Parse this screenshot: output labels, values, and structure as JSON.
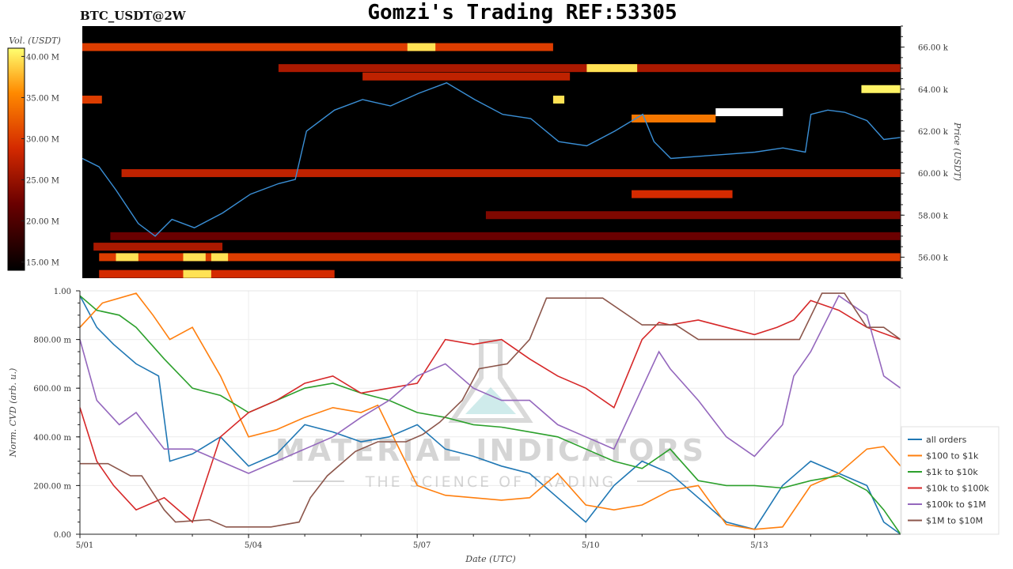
{
  "header": {
    "symbol": "BTC_USDT@2W",
    "title": "Gomzi's Trading REF:53305"
  },
  "watermark": {
    "line1": "MATERIAL INDICATORS",
    "line2": "THE SCIENCE OF TRADING"
  },
  "colors": {
    "price_line": "#3a8fd6",
    "heat_background": "#000000",
    "all_orders": "#1f77b4",
    "100_to_1k": "#ff7f0e",
    "1k_to_10k": "#2ca02c",
    "10k_to_100k": "#d62728",
    "100k_to_1m": "#9467bd",
    "1m_to_10m": "#8c564b"
  },
  "chart_data": [
    {
      "type": "heatmap",
      "title": "Gomzi's Trading REF:53305",
      "ylabel": "Price (USDT)",
      "colorbar_label": "Vol. (USDT)",
      "ylim": [
        55000,
        67000
      ],
      "colorbar_range": [
        14000000,
        41000000
      ],
      "y_ticks": [
        56000,
        58000,
        60000,
        62000,
        64000,
        66000
      ],
      "y_tick_labels": [
        "56.00 k",
        "58.00 k",
        "60.00 k",
        "62.00 k",
        "64.00 k",
        "66.00 k"
      ],
      "colorbar_ticks": [
        15000000,
        20000000,
        25000000,
        30000000,
        35000000,
        40000000
      ],
      "colorbar_tick_labels": [
        "15.00 M",
        "20.00 M",
        "25.00 M",
        "30.00 M",
        "35.00 M",
        "40.00 M"
      ],
      "price_series": {
        "x": [
          0,
          0.3,
          0.6,
          1.0,
          1.3,
          1.6,
          2.0,
          2.5,
          3.0,
          3.5,
          3.8,
          4.0,
          4.5,
          5.0,
          5.5,
          6.0,
          6.5,
          7.0,
          7.5,
          8.0,
          8.5,
          9.0,
          9.5,
          10.0,
          10.2,
          10.5,
          11.0,
          11.5,
          12.0,
          12.5,
          12.9,
          13.0,
          13.3,
          13.6,
          14.0,
          14.3,
          14.6
        ],
        "y": [
          60700,
          60300,
          59200,
          57600,
          57000,
          57800,
          57400,
          58100,
          59000,
          59500,
          59700,
          62000,
          63000,
          63500,
          63200,
          63800,
          64300,
          63500,
          62800,
          62600,
          61500,
          61300,
          62000,
          62800,
          61500,
          60700,
          60800,
          60900,
          61000,
          61200,
          61000,
          62800,
          63000,
          62900,
          62500,
          61600,
          61700
        ]
      },
      "levels": [
        {
          "price": 66000,
          "x": [
            0,
            8.4
          ],
          "intensity": 0.6,
          "hot": [
            [
              5.8,
              6.3
            ]
          ]
        },
        {
          "price": 65000,
          "x": [
            3.5,
            14.6
          ],
          "intensity": 0.45,
          "hot": [
            [
              9.0,
              9.9
            ]
          ]
        },
        {
          "price": 64600,
          "x": [
            5.0,
            8.7
          ],
          "intensity": 0.5,
          "hot": []
        },
        {
          "price": 64000,
          "x": [
            13.9,
            14.6
          ],
          "intensity": 0.98,
          "hot": []
        },
        {
          "price": 63500,
          "x": [
            0,
            0.35
          ],
          "intensity": 0.6,
          "hot": [
            [
              8.4,
              8.6
            ]
          ]
        },
        {
          "price": 62600,
          "x": [
            9.8,
            11.3
          ],
          "intensity": 0.75,
          "hot": []
        },
        {
          "price": 62900,
          "x": [
            11.3,
            12.5
          ],
          "intensity": 1.0,
          "hot": []
        },
        {
          "price": 60000,
          "x": [
            0.7,
            14.6
          ],
          "intensity": 0.5,
          "hot": []
        },
        {
          "price": 59000,
          "x": [
            9.8,
            11.6
          ],
          "intensity": 0.55,
          "hot": []
        },
        {
          "price": 58000,
          "x": [
            7.2,
            14.6
          ],
          "intensity": 0.35,
          "hot": []
        },
        {
          "price": 57000,
          "x": [
            0.5,
            14.6
          ],
          "intensity": 0.3,
          "hot": []
        },
        {
          "price": 56500,
          "x": [
            0.2,
            2.5
          ],
          "intensity": 0.45,
          "hot": []
        },
        {
          "price": 56000,
          "x": [
            0.3,
            14.6
          ],
          "intensity": 0.6,
          "hot": [
            [
              0.6,
              1.0
            ],
            [
              1.8,
              2.2
            ],
            [
              2.3,
              2.6
            ]
          ]
        },
        {
          "price": 55200,
          "x": [
            0.3,
            4.5
          ],
          "intensity": 0.55,
          "hot": [
            [
              1.8,
              2.3
            ]
          ]
        }
      ]
    },
    {
      "type": "line",
      "xlabel": "Date (UTC)",
      "ylabel": "Norm. CVD (arb. u.)",
      "xlim": [
        0,
        14.6
      ],
      "ylim": [
        0,
        1.0
      ],
      "x_ticks": [
        0,
        3,
        6,
        9,
        12
      ],
      "x_tick_labels": [
        "5/01",
        "5/04",
        "5/07",
        "5/10",
        "5/13"
      ],
      "y_ticks": [
        0,
        0.2,
        0.4,
        0.6,
        0.8,
        1.0
      ],
      "y_tick_labels": [
        "0.00",
        "200.00 m",
        "400.00 m",
        "600.00 m",
        "800.00 m",
        "1.00"
      ],
      "legend_position": "bottom-right",
      "series": [
        {
          "name": "all orders",
          "color": "#1f77b4",
          "x": [
            0,
            0.3,
            0.6,
            1.0,
            1.4,
            1.6,
            2.0,
            2.5,
            3.0,
            3.5,
            4.0,
            4.5,
            5.0,
            5.5,
            6.0,
            6.5,
            7.0,
            7.5,
            8.0,
            8.5,
            9.0,
            9.5,
            10.0,
            10.5,
            11.0,
            11.5,
            12.0,
            12.5,
            13.0,
            13.5,
            14.0,
            14.3,
            14.6
          ],
          "y": [
            0.98,
            0.85,
            0.78,
            0.7,
            0.65,
            0.3,
            0.33,
            0.4,
            0.28,
            0.33,
            0.45,
            0.42,
            0.38,
            0.4,
            0.45,
            0.35,
            0.32,
            0.28,
            0.25,
            0.15,
            0.05,
            0.2,
            0.3,
            0.25,
            0.15,
            0.05,
            0.02,
            0.2,
            0.3,
            0.25,
            0.2,
            0.05,
            0.0
          ]
        },
        {
          "name": "$100 to $1k",
          "color": "#ff7f0e",
          "x": [
            0,
            0.4,
            1.0,
            1.3,
            1.6,
            2.0,
            2.5,
            3.0,
            3.5,
            4.0,
            4.5,
            5.0,
            5.3,
            6.0,
            6.5,
            7.0,
            7.5,
            8.0,
            8.5,
            9.0,
            9.5,
            10.0,
            10.5,
            11.0,
            11.5,
            12.0,
            12.5,
            13.0,
            13.5,
            14.0,
            14.3,
            14.6
          ],
          "y": [
            0.85,
            0.95,
            0.99,
            0.9,
            0.8,
            0.85,
            0.65,
            0.4,
            0.43,
            0.48,
            0.52,
            0.5,
            0.53,
            0.2,
            0.16,
            0.15,
            0.14,
            0.15,
            0.25,
            0.12,
            0.1,
            0.12,
            0.18,
            0.2,
            0.04,
            0.02,
            0.03,
            0.2,
            0.25,
            0.35,
            0.36,
            0.28
          ]
        },
        {
          "name": "$1k to $10k",
          "color": "#2ca02c",
          "x": [
            0,
            0.3,
            0.7,
            1.0,
            1.5,
            2.0,
            2.5,
            3.0,
            3.5,
            4.0,
            4.5,
            5.0,
            5.5,
            6.0,
            6.5,
            7.0,
            7.5,
            8.0,
            8.5,
            9.0,
            9.5,
            10.0,
            10.5,
            11.0,
            11.5,
            12.0,
            12.5,
            13.0,
            13.5,
            14.0,
            14.3,
            14.6
          ],
          "y": [
            0.98,
            0.92,
            0.9,
            0.85,
            0.72,
            0.6,
            0.57,
            0.5,
            0.55,
            0.6,
            0.62,
            0.58,
            0.55,
            0.5,
            0.48,
            0.45,
            0.44,
            0.42,
            0.4,
            0.35,
            0.3,
            0.27,
            0.35,
            0.22,
            0.2,
            0.2,
            0.19,
            0.22,
            0.24,
            0.18,
            0.1,
            0.0
          ]
        },
        {
          "name": "$10k to $100k",
          "color": "#d62728",
          "x": [
            0,
            0.3,
            0.6,
            1.0,
            1.5,
            2.0,
            2.5,
            3.0,
            3.5,
            4.0,
            4.5,
            5.0,
            5.5,
            6.0,
            6.5,
            7.0,
            7.5,
            8.0,
            8.5,
            9.0,
            9.5,
            10.0,
            10.3,
            10.5,
            11.0,
            11.5,
            12.0,
            12.4,
            12.7,
            13.0,
            13.5,
            14.0,
            14.6
          ],
          "y": [
            0.52,
            0.3,
            0.2,
            0.1,
            0.15,
            0.05,
            0.4,
            0.5,
            0.55,
            0.62,
            0.65,
            0.58,
            0.6,
            0.62,
            0.8,
            0.78,
            0.8,
            0.72,
            0.65,
            0.6,
            0.52,
            0.8,
            0.87,
            0.86,
            0.88,
            0.85,
            0.82,
            0.85,
            0.88,
            0.96,
            0.92,
            0.85,
            0.8
          ]
        },
        {
          "name": "$100k to $1M",
          "color": "#9467bd",
          "x": [
            0,
            0.3,
            0.7,
            1.0,
            1.5,
            2.0,
            2.5,
            3.0,
            3.5,
            4.0,
            4.5,
            5.0,
            5.5,
            6.0,
            6.5,
            7.0,
            7.5,
            8.0,
            8.5,
            9.0,
            9.5,
            10.0,
            10.3,
            10.5,
            11.0,
            11.5,
            12.0,
            12.5,
            12.7,
            13.0,
            13.5,
            14.0,
            14.3,
            14.6
          ],
          "y": [
            0.8,
            0.55,
            0.45,
            0.5,
            0.35,
            0.35,
            0.3,
            0.25,
            0.3,
            0.35,
            0.4,
            0.48,
            0.55,
            0.65,
            0.7,
            0.6,
            0.55,
            0.55,
            0.45,
            0.4,
            0.35,
            0.6,
            0.75,
            0.68,
            0.55,
            0.4,
            0.32,
            0.45,
            0.65,
            0.75,
            0.98,
            0.9,
            0.65,
            0.6
          ]
        },
        {
          "name": "$1M to $10M",
          "color": "#8c564b",
          "x": [
            0,
            0.5,
            0.9,
            1.1,
            1.5,
            1.7,
            2.3,
            2.6,
            3.0,
            3.4,
            3.9,
            4.1,
            4.4,
            4.9,
            5.3,
            5.8,
            6.1,
            6.4,
            6.8,
            7.1,
            7.6,
            8.0,
            8.3,
            9.3,
            10.0,
            10.3,
            10.6,
            11.0,
            12.0,
            12.5,
            12.8,
            13.2,
            13.6,
            14.0,
            14.3,
            14.6
          ],
          "y": [
            0.29,
            0.29,
            0.24,
            0.24,
            0.1,
            0.05,
            0.06,
            0.03,
            0.03,
            0.03,
            0.05,
            0.15,
            0.24,
            0.34,
            0.38,
            0.38,
            0.41,
            0.46,
            0.55,
            0.68,
            0.7,
            0.8,
            0.97,
            0.97,
            0.86,
            0.86,
            0.86,
            0.8,
            0.8,
            0.8,
            0.8,
            0.99,
            0.99,
            0.85,
            0.85,
            0.8
          ]
        }
      ]
    }
  ]
}
